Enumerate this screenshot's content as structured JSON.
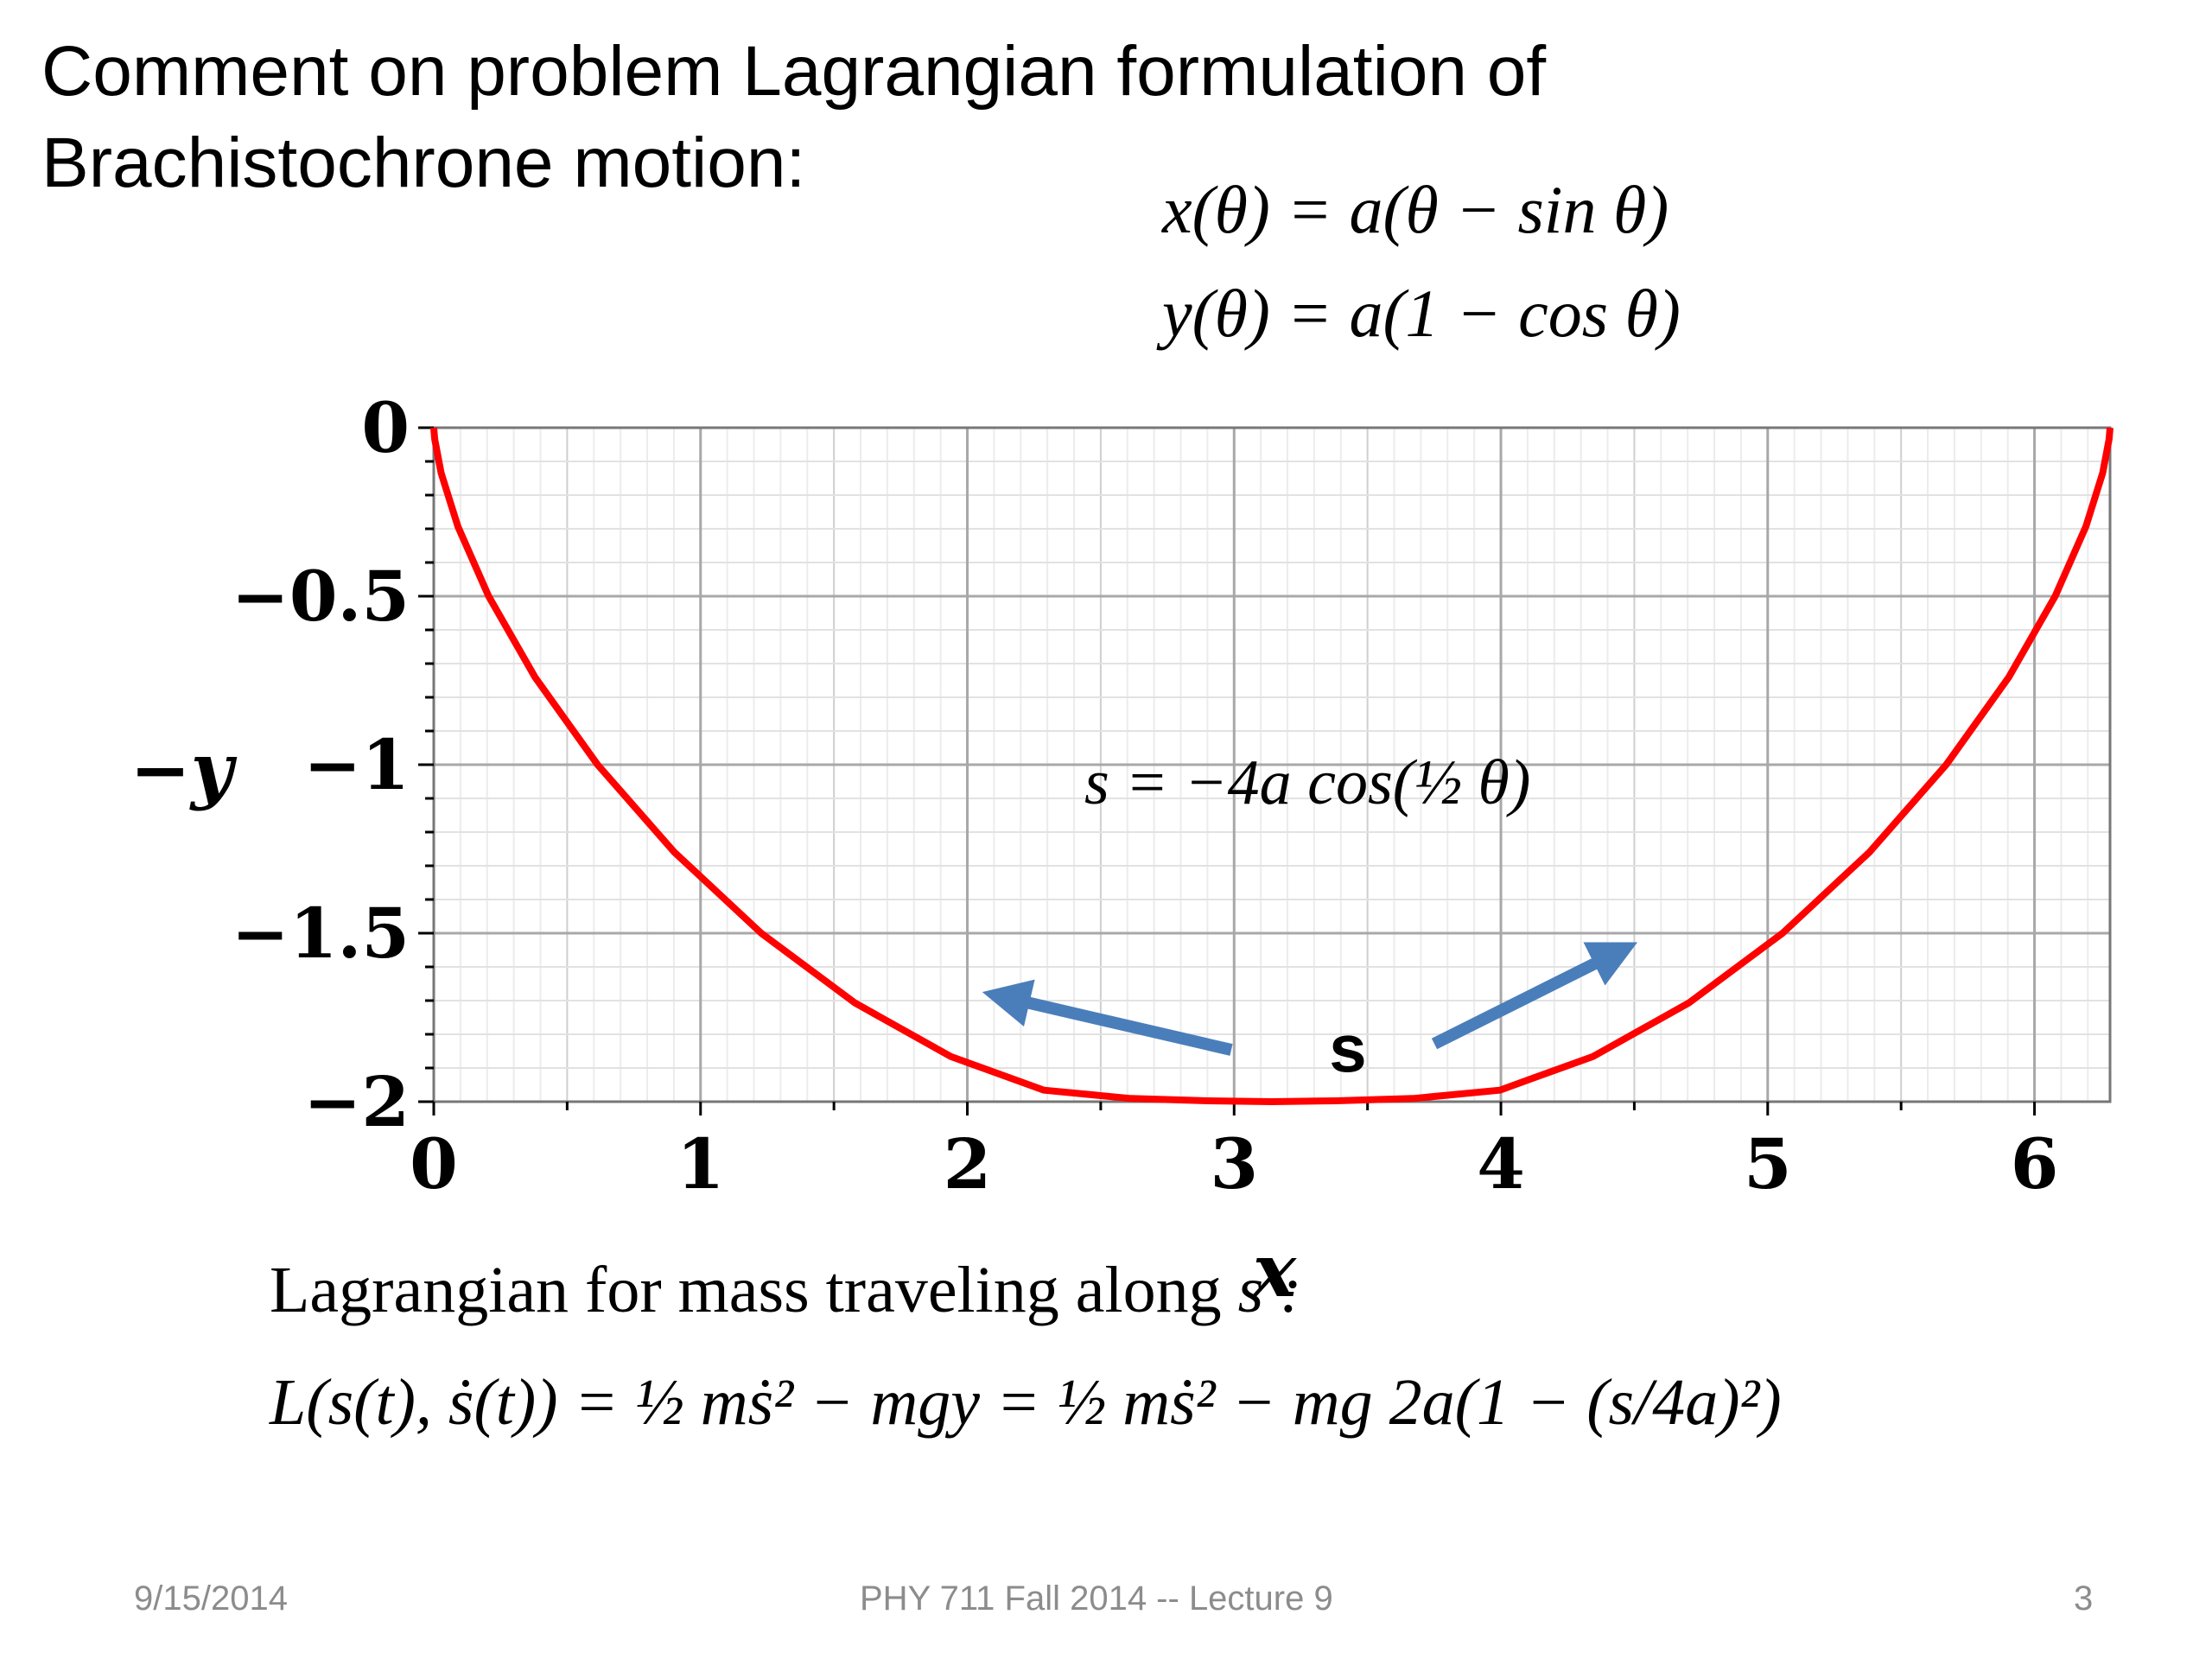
{
  "title_line1": "Comment on problem Lagrangian formulation of",
  "title_line2": "Brachistochrone motion:",
  "parametric": {
    "x_eq": "x(θ) = a(θ − sin θ)",
    "y_eq": "y(θ) = a(1 − cos θ)"
  },
  "chart_data": {
    "type": "line",
    "xlabel": "x",
    "ylabel": "−y",
    "xlim": [
      0,
      6.2832
    ],
    "ylim": [
      -2,
      0
    ],
    "x_ticks": [
      "0",
      "1",
      "2",
      "3",
      "4",
      "5",
      "6"
    ],
    "y_ticks": [
      "0",
      "−0.5",
      "−1",
      "−1.5",
      "−2"
    ],
    "grid": true,
    "series": [
      {
        "color": "#ff0000",
        "x": [
          0,
          0.0035,
          0.0274,
          0.0902,
          0.2056,
          0.3803,
          0.6142,
          0.9006,
          1.2275,
          1.5791,
          1.9382,
          2.2876,
          2.6124,
          2.9016,
          3.1416,
          3.3816,
          3.6708,
          3.9956,
          4.345,
          4.7041,
          5.0557,
          5.3826,
          5.669,
          5.9029,
          6.0776,
          6.193,
          6.2558,
          6.2797,
          6.2832
        ],
        "y": [
          0,
          -0.0341,
          -0.134,
          -0.2929,
          -0.5,
          -0.7412,
          -1.0,
          -1.2588,
          -1.5,
          -1.7071,
          -1.866,
          -1.9659,
          -1.9904,
          -1.9975,
          -2.0,
          -1.9975,
          -1.9904,
          -1.9659,
          -1.866,
          -1.7071,
          -1.5,
          -1.2588,
          -1.0,
          -0.7412,
          -0.5,
          -0.2929,
          -0.134,
          -0.0341,
          0
        ]
      }
    ],
    "annotations": {
      "arc_formula": "s = −4a cos(½ θ)",
      "s_label": "s",
      "arrow_color": "#4a7ebb"
    }
  },
  "lagrangian_label_text": "Lagrangian for mass traveling along",
  "lagrangian_label_var": "s :",
  "lagrangian_eq": "L(s(t), ṡ(t)) = ½ mṡ² − mgy = ½ mṡ² − mg 2a(1 − (s/4a)²)",
  "footer": {
    "date": "9/15/2014",
    "course": "PHY 711  Fall 2014 -- Lecture 9",
    "page": "3"
  }
}
